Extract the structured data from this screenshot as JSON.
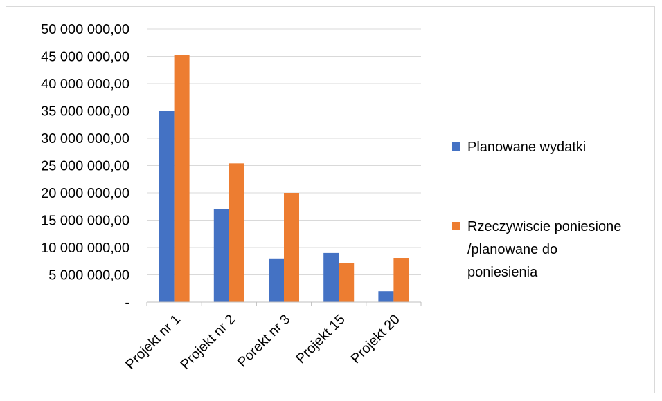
{
  "chart_data": {
    "type": "bar",
    "title": "",
    "xlabel": "",
    "ylabel": "",
    "categories": [
      "Projekt nr 1",
      "Projekt nr 2",
      "Porekt nr 3",
      "Projekt 15",
      "Projekt 20"
    ],
    "series": [
      {
        "name": "Planowane wydatki",
        "color": "#4472C4",
        "values": [
          35000000,
          17000000,
          8000000,
          9000000,
          2000000
        ]
      },
      {
        "name": "Rzeczywiscie poniesione /planowane do poniesienia",
        "name_lines": [
          "Rzeczywiscie poniesione",
          "/planowane do",
          "poniesienia"
        ],
        "color": "#ED7D31",
        "values": [
          45200000,
          25400000,
          20000000,
          7200000,
          8100000
        ]
      }
    ],
    "ylim": [
      0,
      50000000
    ],
    "y_ticks": [
      0,
      5000000,
      10000000,
      15000000,
      20000000,
      25000000,
      30000000,
      35000000,
      40000000,
      45000000,
      50000000
    ],
    "y_tick_labels": [
      "-",
      "5 000 000,00",
      "10 000 000,00",
      "15 000 000,00",
      "20 000 000,00",
      "25 000 000,00",
      "30 000 000,00",
      "35 000 000,00",
      "40 000 000,00",
      "45 000 000,00",
      "50 000 000,00"
    ],
    "grid": true,
    "legend_position": "right"
  }
}
